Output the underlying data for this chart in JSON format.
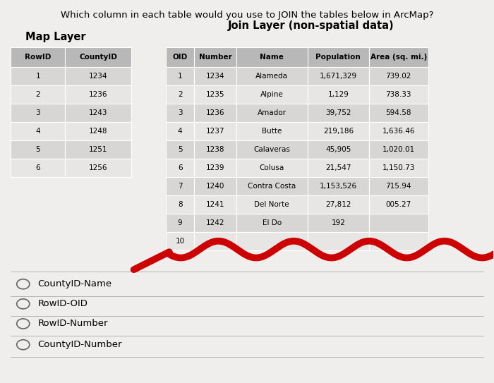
{
  "title": "Which column in each table would you use to JOIN the tables below in ArcMap?",
  "map_layer_title": "Map Layer",
  "join_layer_title": "Join Layer (non-spatial data)",
  "map_layer_headers": [
    "RowID",
    "CountyID"
  ],
  "map_layer_rows": [
    [
      "1",
      "1234"
    ],
    [
      "2",
      "1236"
    ],
    [
      "3",
      "1243"
    ],
    [
      "4",
      "1248"
    ],
    [
      "5",
      "1251"
    ],
    [
      "6",
      "1256"
    ]
  ],
  "join_layer_headers": [
    "OID",
    "Number",
    "Name",
    "Population",
    "Area (sq. mi.)"
  ],
  "join_layer_rows": [
    [
      "1",
      "1234",
      "Alameda",
      "1,671,329",
      "739.02"
    ],
    [
      "2",
      "1235",
      "Alpine",
      "1,129",
      "738.33"
    ],
    [
      "3",
      "1236",
      "Amador",
      "39,752",
      "594.58"
    ],
    [
      "4",
      "1237",
      "Butte",
      "219,186",
      "1,636.46"
    ],
    [
      "5",
      "1238",
      "Calaveras",
      "45,905",
      "1,020.01"
    ],
    [
      "6",
      "1239",
      "Colusa",
      "21,547",
      "1,150.73"
    ],
    [
      "7",
      "1240",
      "Contra Costa",
      "1,153,526",
      "715.94"
    ],
    [
      "8",
      "1241",
      "Del Norte",
      "27,812",
      "005.27"
    ],
    [
      "9",
      "1242",
      "El Do",
      "192",
      ""
    ],
    [
      "10",
      "",
      "",
      "",
      ""
    ]
  ],
  "options": [
    "CountyID-Name",
    "RowID-OID",
    "RowID-Number",
    "CountyID-Number"
  ],
  "bg_color": "#f0eeec",
  "header_bg": "#b8b8b8",
  "row_bg1": "#d8d6d4",
  "row_bg2": "#e8e6e4",
  "red_curve_color": "#cc0000"
}
